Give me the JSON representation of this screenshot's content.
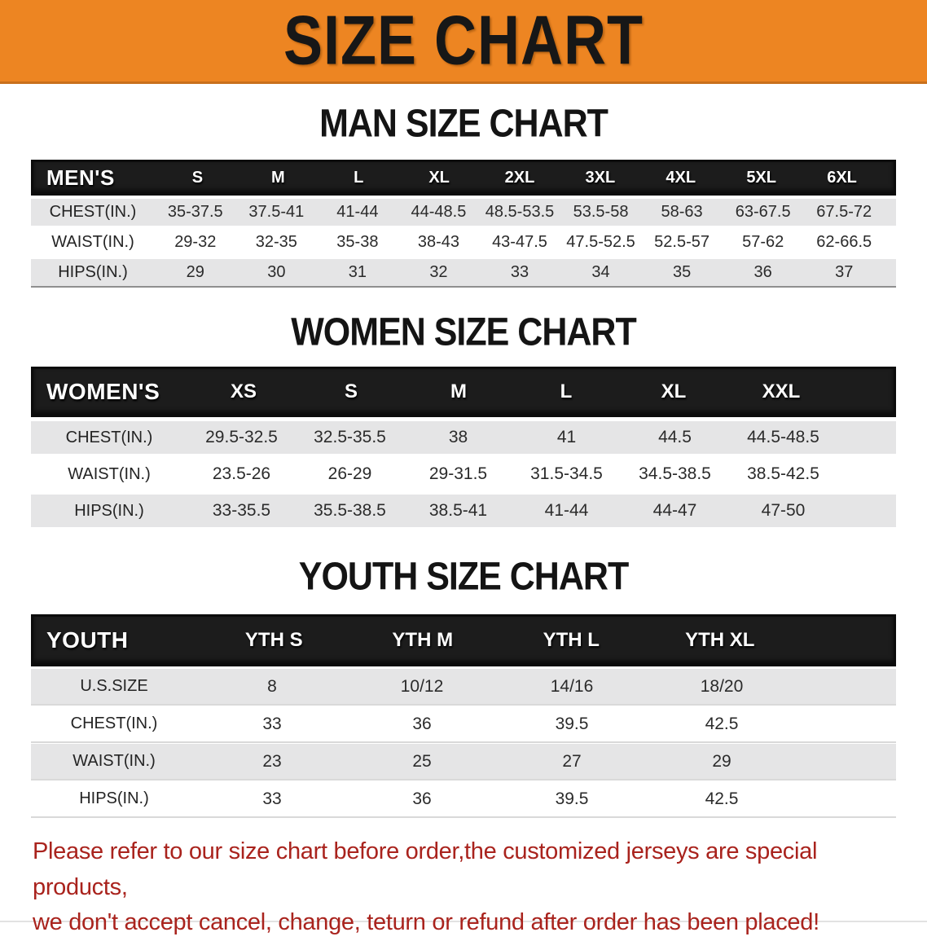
{
  "banner": {
    "title": "SIZE CHART",
    "bg_color": "#ED8522",
    "text_color": "#171717"
  },
  "colors": {
    "header_bar": "#1c1c1c",
    "row_shade": "#e5e5e6",
    "footer_red": "#a9231d"
  },
  "sections": [
    {
      "id": "men",
      "title": "MAN SIZE CHART",
      "header_label": "MEN'S",
      "columns": [
        "S",
        "M",
        "L",
        "XL",
        "2XL",
        "3XL",
        "4XL",
        "5XL",
        "6XL"
      ],
      "rows": [
        {
          "label": "CHEST(IN.)",
          "values": [
            "35-37.5",
            "37.5-41",
            "41-44",
            "44-48.5",
            "48.5-53.5",
            "53.5-58",
            "58-63",
            "63-67.5",
            "67.5-72"
          ]
        },
        {
          "label": "WAIST(IN.)",
          "values": [
            "29-32",
            "32-35",
            "35-38",
            "38-43",
            "43-47.5",
            "47.5-52.5",
            "52.5-57",
            "57-62",
            "62-66.5"
          ]
        },
        {
          "label": "HIPS(IN.)",
          "values": [
            "29",
            "30",
            "31",
            "32",
            "33",
            "34",
            "35",
            "36",
            "37"
          ]
        }
      ]
    },
    {
      "id": "women",
      "title": "WOMEN SIZE CHART",
      "header_label": "WOMEN'S",
      "columns": [
        "XS",
        "S",
        "M",
        "L",
        "XL",
        "XXL"
      ],
      "rows": [
        {
          "label": "CHEST(IN.)",
          "values": [
            "29.5-32.5",
            "32.5-35.5",
            "38",
            "41",
            "44.5",
            "44.5-48.5"
          ]
        },
        {
          "label": "WAIST(IN.)",
          "values": [
            "23.5-26",
            "26-29",
            "29-31.5",
            "31.5-34.5",
            "34.5-38.5",
            "38.5-42.5"
          ]
        },
        {
          "label": "HIPS(IN.)",
          "values": [
            "33-35.5",
            "35.5-38.5",
            "38.5-41",
            "41-44",
            "44-47",
            "47-50"
          ]
        }
      ]
    },
    {
      "id": "youth",
      "title": "YOUTH SIZE CHART",
      "header_label": "YOUTH",
      "columns": [
        "YTH S",
        "YTH M",
        "YTH L",
        "YTH XL"
      ],
      "rows": [
        {
          "label": "U.S.SIZE",
          "values": [
            "8",
            "10/12",
            "14/16",
            "18/20"
          ]
        },
        {
          "label": "CHEST(IN.)",
          "values": [
            "33",
            "36",
            "39.5",
            "42.5"
          ]
        },
        {
          "label": "WAIST(IN.)",
          "values": [
            "23",
            "25",
            "27",
            "29"
          ]
        },
        {
          "label": "HIPS(IN.)",
          "values": [
            "33",
            "36",
            "39.5",
            "42.5"
          ]
        }
      ]
    }
  ],
  "footer": {
    "line1": "Please refer to our size chart before order,the customized jerseys are special products,",
    "line2": "we don't accept cancel, change, teturn or refund after order has been placed!"
  }
}
